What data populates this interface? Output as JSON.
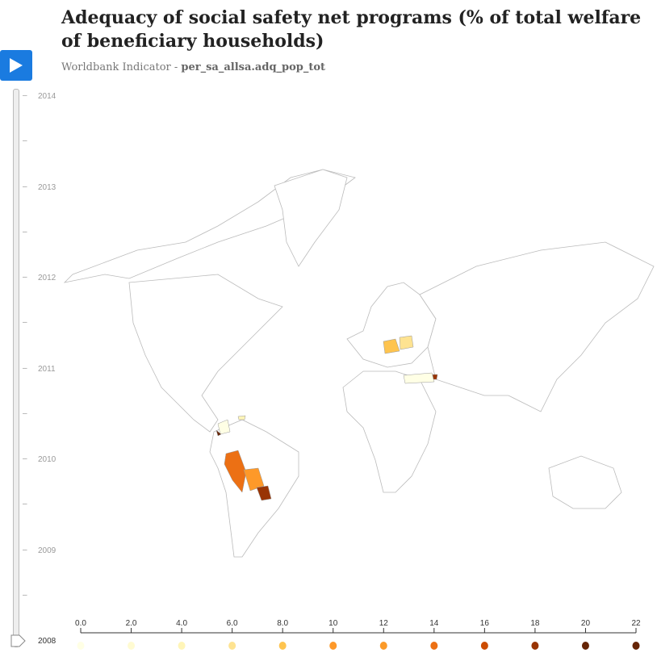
{
  "header": {
    "title": "Adequacy of social safety net programs (% of total welfare of beneficiary households)",
    "subtitle_prefix": "Worldbank Indicator - ",
    "indicator_code": "per_sa_allsa.adq_pop_tot"
  },
  "timeline": {
    "years": [
      "2014",
      "2013",
      "2012",
      "2011",
      "2010",
      "2009",
      "2008"
    ],
    "current_year": "2008",
    "play_icon": "play-icon"
  },
  "legend": {
    "ticks": [
      "0.0",
      "2.0",
      "4.0",
      "6.0",
      "8.0",
      "10",
      "12",
      "14",
      "16",
      "18",
      "20",
      "22"
    ],
    "colors": [
      "#ffffe5",
      "#fffbd2",
      "#fff5b8",
      "#fee391",
      "#fec44f",
      "#fe9929",
      "#fb9a29",
      "#ec7014",
      "#cc4c02",
      "#993404",
      "#662506",
      "#662506"
    ]
  },
  "highlighted_colors": {
    "poland": "#fec44f",
    "belarus": "#fee391",
    "turkey": "#ffffe5",
    "armenia": "#993404",
    "peru": "#ec7014",
    "bolivia": "#fe9929",
    "paraguay": "#993404",
    "colombia": "#ffffe5",
    "panama": "#662506",
    "dominican": "#fff5b8"
  }
}
